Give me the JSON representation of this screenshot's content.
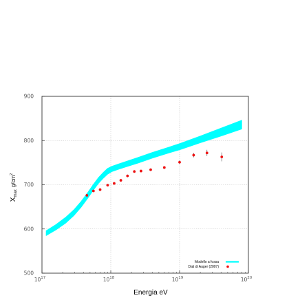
{
  "chart_data": {
    "type": "line",
    "title": "",
    "xlabel": "Energia eV",
    "ylabel": "X",
    "ylabel_sub": "max",
    "ylabel_unit": "g/cm",
    "ylabel_sup": "2",
    "x_scale": "log",
    "xlim": [
      1e+17,
      1e+20
    ],
    "ylim": [
      500,
      900
    ],
    "x_ticks": [
      {
        "value": 1e+17,
        "base": "10",
        "exp": "17"
      },
      {
        "value": 1e+18,
        "base": "10",
        "exp": "18"
      },
      {
        "value": 1e+19,
        "base": "10",
        "exp": "19"
      },
      {
        "value": 1e+20,
        "base": "10",
        "exp": "20"
      }
    ],
    "y_ticks": [
      500,
      600,
      700,
      800,
      900
    ],
    "grid": true,
    "legend_position": "bottom-right",
    "colors": {
      "band": "#00ffff",
      "points": "#ee1111",
      "frame": "#333333",
      "grid": "#bbbbbb"
    },
    "series": [
      {
        "name": "Modello a fossa",
        "kind": "band",
        "x": [
          1.15e+17,
          1.6e+17,
          2.2e+17,
          2.9e+17,
          3.7e+17,
          4.6e+17,
          5.6e+17,
          6.6e+17,
          7.8e+17,
          9e+17,
          1.05e+18,
          1.3e+18,
          1.7e+18,
          2.5e+18,
          4e+18,
          7e+18,
          1e+19,
          2e+19,
          4e+19,
          8e+19
        ],
        "upper": [
          596,
          610,
          626,
          643,
          662,
          682,
          701,
          716,
          728,
          737,
          742,
          747,
          753,
          762,
          773,
          785,
          793,
          810,
          828,
          846
        ],
        "lower": [
          585,
          598,
          613,
          630,
          649,
          669,
          688,
          703,
          715,
          724,
          730,
          735,
          741,
          749,
          760,
          772,
          779,
          795,
          810,
          826
        ]
      },
      {
        "name": "Dati di Auger (2007)",
        "kind": "points",
        "x": [
          4.5e+17,
          5.6e+17,
          7e+17,
          9e+17,
          1.12e+18,
          1.4e+18,
          1.75e+18,
          2.2e+18,
          2.75e+18,
          3.8e+18,
          6e+18,
          1e+19,
          1.6e+19,
          2.5e+19,
          4.1e+19
        ],
        "y": [
          676,
          686,
          689,
          699,
          703,
          710,
          720,
          730,
          731,
          734,
          739,
          751,
          767,
          772,
          763
        ],
        "err": [
          3,
          2,
          2,
          2,
          2,
          2,
          3,
          3,
          3,
          3,
          3,
          4,
          5,
          7,
          10
        ]
      }
    ]
  }
}
